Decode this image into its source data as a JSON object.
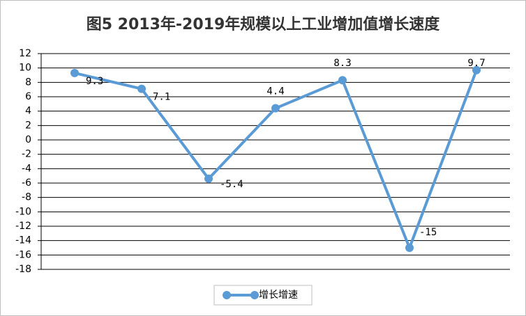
{
  "chart_data": {
    "type": "line",
    "title": "图5 2013年-2019年规模以上工业增加值增长速度",
    "categories": [
      null,
      null,
      null,
      null,
      null,
      null,
      null
    ],
    "series": [
      {
        "name": "增长增速",
        "color": "#5b9bd5",
        "values": [
          9.3,
          7.1,
          -5.4,
          4.4,
          8.3,
          -15,
          9.7
        ]
      }
    ],
    "ylim": [
      -18,
      12
    ],
    "yticks": [
      -18,
      -16,
      -14,
      -12,
      -10,
      -8,
      -6,
      -4,
      -2,
      0,
      2,
      4,
      6,
      8,
      10,
      12
    ],
    "grid": true
  }
}
